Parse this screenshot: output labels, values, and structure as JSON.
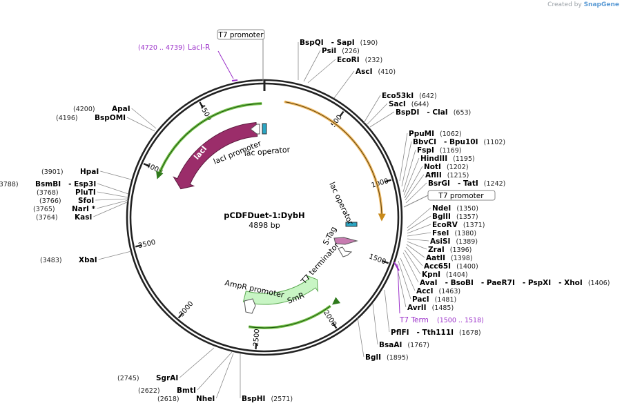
{
  "credit": {
    "prefix": "Created by",
    "brand": "SnapGene"
  },
  "plasmid": {
    "name": "pCDFDuet-1:DybH",
    "length_label": "4898 bp",
    "total_bp": 4898
  },
  "ticks": [
    {
      "bp": 500,
      "label": "500"
    },
    {
      "bp": 1000,
      "label": "1000"
    },
    {
      "bp": 1500,
      "label": "1500"
    },
    {
      "bp": 2000,
      "label": "2000"
    },
    {
      "bp": 2500,
      "label": "2500"
    },
    {
      "bp": 3000,
      "label": "3000"
    },
    {
      "bp": 3500,
      "label": "3500"
    },
    {
      "bp": 4000,
      "label": "4000"
    },
    {
      "bp": 4500,
      "label": "4500"
    }
  ],
  "features": {
    "laci": {
      "label": "lacI",
      "color": "#9b2d6a"
    },
    "smr": {
      "label": "SmR",
      "color": "#c8f5c4"
    },
    "orange_arc": {
      "color": "#f5c06a"
    },
    "green_arc_color": "#7ac64e"
  },
  "feature_labels": [
    {
      "id": "laci-promoter",
      "text": "lacI promoter"
    },
    {
      "id": "lac-operator-top",
      "text": "lac operator"
    },
    {
      "id": "lac-operator-right",
      "text": "lac operator"
    },
    {
      "id": "s-tag",
      "text": "S-Tag"
    },
    {
      "id": "t7-terminator",
      "text": "T7 terminator"
    },
    {
      "id": "ampr-promoter",
      "text": "AmpR promoter"
    }
  ],
  "boxed_labels": [
    {
      "id": "t7-promoter-top",
      "text": "T7 promoter"
    },
    {
      "id": "t7-promoter-right",
      "text": "T7 promoter"
    }
  ],
  "primers": [
    {
      "id": "laci-r",
      "pos": "(4720 .. 4739)",
      "name": "LacI-R"
    },
    {
      "id": "t7-term",
      "name": "T7 Term",
      "pos": "(1500 .. 1518)"
    }
  ],
  "sites": [
    {
      "id": "bspqi",
      "names": [
        "BspQI",
        "- SapI"
      ],
      "pos": "(190)",
      "side": "right"
    },
    {
      "id": "psii",
      "names": [
        "PsiI"
      ],
      "pos": "(226)",
      "side": "right"
    },
    {
      "id": "ecori",
      "names": [
        "EcoRI"
      ],
      "pos": "(232)",
      "side": "right"
    },
    {
      "id": "asci",
      "names": [
        "AscI"
      ],
      "pos": "(410)",
      "side": "right"
    },
    {
      "id": "eco53ki",
      "names": [
        "Eco53kI"
      ],
      "pos": "(642)",
      "side": "right"
    },
    {
      "id": "saci",
      "names": [
        "SacI"
      ],
      "pos": "(644)",
      "side": "right"
    },
    {
      "id": "bspdi",
      "names": [
        "BspDI",
        "- ClaI"
      ],
      "pos": "(653)",
      "side": "right"
    },
    {
      "id": "ppumi",
      "names": [
        "PpuMI"
      ],
      "pos": "(1062)",
      "side": "right"
    },
    {
      "id": "bbvci",
      "names": [
        "BbvCI",
        "- Bpu10I"
      ],
      "pos": "(1102)",
      "side": "right"
    },
    {
      "id": "fspi",
      "names": [
        "FspI"
      ],
      "pos": "(1169)",
      "side": "right"
    },
    {
      "id": "hindiii",
      "names": [
        "HindIII"
      ],
      "pos": "(1195)",
      "side": "right"
    },
    {
      "id": "noti",
      "names": [
        "NotI"
      ],
      "pos": "(1202)",
      "side": "right"
    },
    {
      "id": "aflii",
      "names": [
        "AflII"
      ],
      "pos": "(1215)",
      "side": "right"
    },
    {
      "id": "bsrgi",
      "names": [
        "BsrGI",
        "- TatI"
      ],
      "pos": "(1242)",
      "side": "right"
    },
    {
      "id": "ndei",
      "names": [
        "NdeI"
      ],
      "pos": "(1350)",
      "side": "right"
    },
    {
      "id": "bglii",
      "names": [
        "BglII"
      ],
      "pos": "(1357)",
      "side": "right"
    },
    {
      "id": "ecorv",
      "names": [
        "EcoRV"
      ],
      "pos": "(1371)",
      "side": "right"
    },
    {
      "id": "fsei",
      "names": [
        "FseI"
      ],
      "pos": "(1380)",
      "side": "right"
    },
    {
      "id": "asisi",
      "names": [
        "AsiSI"
      ],
      "pos": "(1389)",
      "side": "right"
    },
    {
      "id": "zrai",
      "names": [
        "ZraI"
      ],
      "pos": "(1396)",
      "side": "right"
    },
    {
      "id": "aatii",
      "names": [
        "AatII"
      ],
      "pos": "(1398)",
      "side": "right"
    },
    {
      "id": "acc65i",
      "names": [
        "Acc65I"
      ],
      "pos": "(1400)",
      "side": "right"
    },
    {
      "id": "kpni",
      "names": [
        "KpnI"
      ],
      "pos": "(1404)",
      "side": "right"
    },
    {
      "id": "avai",
      "names": [
        "AvaI",
        "- BsoBI",
        "- PaeR7I",
        "- PspXI",
        "- XhoI"
      ],
      "pos": "(1406)",
      "side": "right"
    },
    {
      "id": "acci",
      "names": [
        "AccI"
      ],
      "pos": "(1463)",
      "side": "right"
    },
    {
      "id": "paci",
      "names": [
        "PacI"
      ],
      "pos": "(1481)",
      "side": "right"
    },
    {
      "id": "avrii",
      "names": [
        "AvrII"
      ],
      "pos": "(1485)",
      "side": "right"
    },
    {
      "id": "pflfi",
      "names": [
        "PflFI",
        "- Tth111I"
      ],
      "pos": "(1678)",
      "side": "right"
    },
    {
      "id": "bsaai",
      "names": [
        "BsaAI"
      ],
      "pos": "(1767)",
      "side": "right"
    },
    {
      "id": "bgli",
      "names": [
        "BglI"
      ],
      "pos": "(1895)",
      "side": "right"
    },
    {
      "id": "bsphi",
      "names": [
        "BspHI"
      ],
      "pos": "(2571)",
      "side": "right"
    },
    {
      "id": "nhei",
      "names": [
        "NheI"
      ],
      "pos": "(2618)",
      "side": "left"
    },
    {
      "id": "bmti",
      "names": [
        "BmtI"
      ],
      "pos": "(2622)",
      "side": "left"
    },
    {
      "id": "sgrai",
      "names": [
        "SgrAI"
      ],
      "pos": "(2745)",
      "side": "left"
    },
    {
      "id": "xbai",
      "names": [
        "XbaI"
      ],
      "pos": "(3483)",
      "side": "left"
    },
    {
      "id": "kasi",
      "names": [
        "KasI"
      ],
      "pos": "(3764)",
      "side": "left"
    },
    {
      "id": "nari",
      "names": [
        "NarI *"
      ],
      "pos": "(3765)",
      "side": "left"
    },
    {
      "id": "sfoi",
      "names": [
        "SfoI"
      ],
      "pos": "(3766)",
      "side": "left"
    },
    {
      "id": "pluti",
      "names": [
        "PluTI"
      ],
      "pos": "(3768)",
      "side": "left"
    },
    {
      "id": "bsmbi",
      "names": [
        "BsmBI",
        "- Esp3I"
      ],
      "pos": "(3788)",
      "side": "left"
    },
    {
      "id": "hpai",
      "names": [
        "HpaI"
      ],
      "pos": "(3901)",
      "side": "left"
    },
    {
      "id": "bspomi",
      "names": [
        "BspOMI"
      ],
      "pos": "(4196)",
      "side": "left"
    },
    {
      "id": "apai",
      "names": [
        "ApaI"
      ],
      "pos": "(4200)",
      "side": "left"
    }
  ]
}
